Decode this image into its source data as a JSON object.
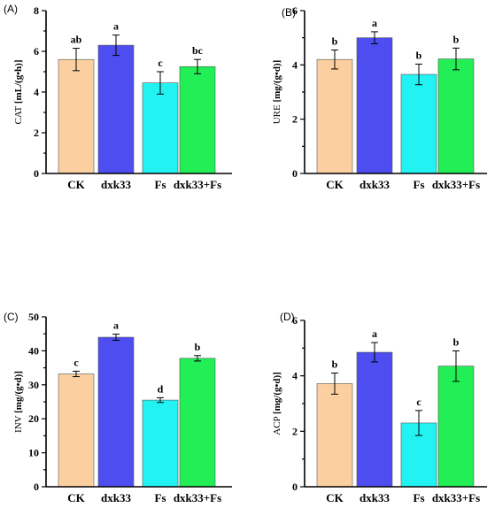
{
  "chart_data": [
    {
      "type": "bar",
      "panel": "(A)",
      "categories": [
        "CK",
        "dxk33",
        "Fs",
        "dxk33+Fs"
      ],
      "values": [
        5.6,
        6.3,
        4.45,
        5.25
      ],
      "errors": [
        0.55,
        0.5,
        0.55,
        0.35
      ],
      "significance": [
        "ab",
        "a",
        "c",
        "bc"
      ],
      "ylabel": "CAT",
      "yunit": "[mL/(g•h)]",
      "ylim": [
        0,
        8
      ],
      "yticks": [
        "0",
        "2",
        "4",
        "6",
        "8"
      ],
      "colors": [
        "#FBCFA0",
        "#4D4DF0",
        "#22F2F2",
        "#22EE55"
      ]
    },
    {
      "type": "bar",
      "panel": "(B)",
      "categories": [
        "CK",
        "dxk33",
        "Fs",
        "dxk33+Fs"
      ],
      "values": [
        4.2,
        5.0,
        3.65,
        4.22
      ],
      "errors": [
        0.35,
        0.22,
        0.38,
        0.4
      ],
      "significance": [
        "b",
        "a",
        "b",
        "b"
      ],
      "ylabel": "URE",
      "yunit": "[mg/(g•d)]",
      "ylim": [
        0,
        6
      ],
      "yticks": [
        "0",
        "2",
        "4",
        "6"
      ],
      "colors": [
        "#FBCFA0",
        "#4D4DF0",
        "#22F2F2",
        "#22EE55"
      ]
    },
    {
      "type": "bar",
      "panel": "(C)",
      "categories": [
        "CK",
        "dxk33",
        "Fs",
        "dxk33+Fs"
      ],
      "values": [
        33.2,
        44.0,
        25.5,
        37.8
      ],
      "errors": [
        0.8,
        0.9,
        0.7,
        0.8
      ],
      "significance": [
        "c",
        "a",
        "d",
        "b"
      ],
      "ylabel": "INV",
      "yunit": "[mg/(g•d)]",
      "ylim": [
        0,
        50
      ],
      "yticks": [
        "0",
        "10",
        "20",
        "30",
        "40",
        "50"
      ],
      "colors": [
        "#FBCFA0",
        "#4D4DF0",
        "#22F2F2",
        "#22EE55"
      ]
    },
    {
      "type": "bar",
      "panel": "(D)",
      "categories": [
        "CK",
        "dxk33",
        "Fs",
        "dxk33+Fs"
      ],
      "values": [
        3.72,
        4.85,
        2.3,
        4.35
      ],
      "errors": [
        0.38,
        0.35,
        0.45,
        0.55
      ],
      "significance": [
        "b",
        "a",
        "c",
        "b"
      ],
      "ylabel": "ACP",
      "yunit": "[mg/(g•d)]",
      "ylim": [
        0,
        6
      ],
      "yticks": [
        "0",
        "2",
        "4",
        "6"
      ],
      "colors": [
        "#FBCFA0",
        "#4D4DF0",
        "#22F2F2",
        "#22EE55"
      ]
    }
  ]
}
